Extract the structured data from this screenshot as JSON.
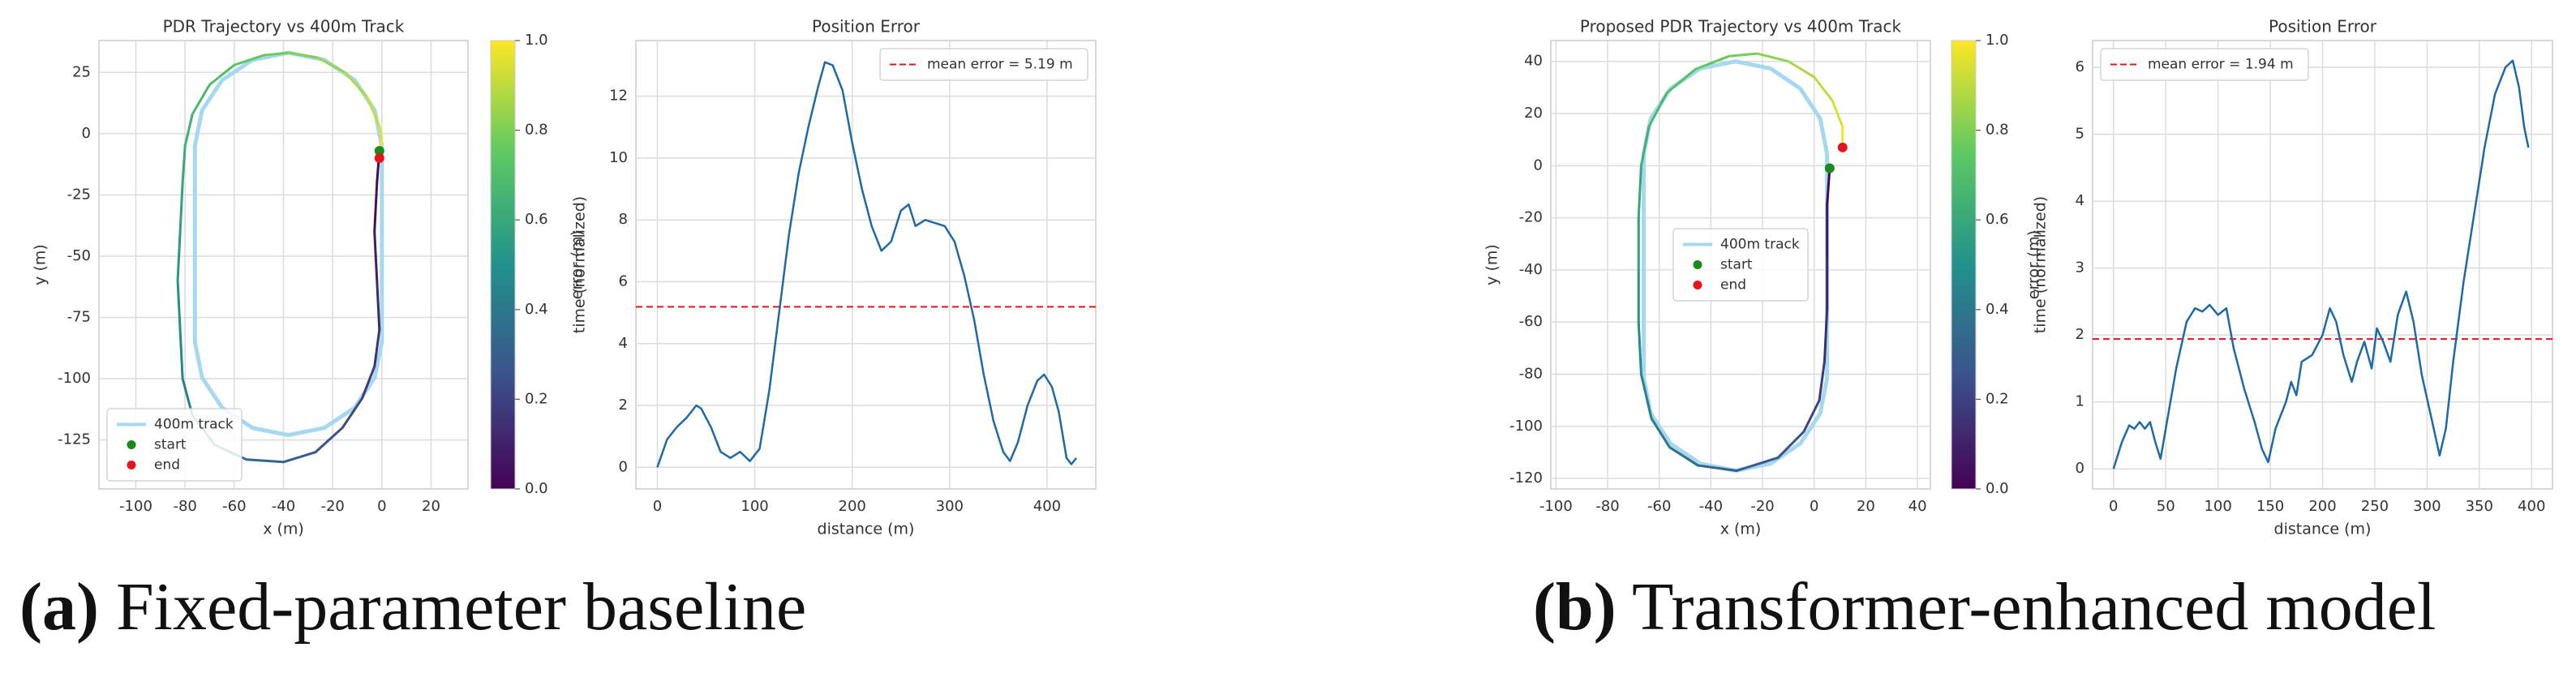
{
  "chart_data": [
    {
      "type": "line",
      "title": "PDR Trajectory vs 400m Track",
      "xlabel": "x (m)",
      "ylabel": "y (m)",
      "xlim": [
        -115,
        35
      ],
      "xticks": [
        -100,
        -80,
        -60,
        -40,
        -20,
        0,
        20
      ],
      "ylim": [
        -145,
        38
      ],
      "yticks": [
        -125,
        -100,
        -75,
        -50,
        -25,
        0,
        25
      ],
      "grid": true,
      "legend": "lower left",
      "series": [
        {
          "name": "400m track",
          "color": "#a6d8f0",
          "x": [
            0,
            0,
            -2.9,
            -11.1,
            -23.4,
            -38,
            -52.6,
            -64.9,
            -73.1,
            -76,
            -76,
            -73.1,
            -64.9,
            -52.6,
            -38,
            -23.4,
            -11.1,
            -2.9,
            0
          ],
          "values": [
            -5,
            -85,
            -99.5,
            -111.9,
            -120.1,
            -123,
            -120.1,
            -111.9,
            -99.5,
            -85,
            -5,
            9.5,
            21.9,
            30.1,
            33,
            30.1,
            21.9,
            9.5,
            -5
          ]
        },
        {
          "colormap": "viridis",
          "x": [
            -1,
            -2,
            -3,
            -2,
            -1,
            -3,
            -8,
            -16,
            -27,
            -40,
            -55,
            -68,
            -77,
            -81,
            -82,
            -83,
            -82,
            -81,
            -80,
            -77,
            -70,
            -60,
            -48,
            -38,
            -26,
            -15,
            -6,
            -1,
            0,
            -1
          ],
          "values": [
            -7,
            -20,
            -40,
            -60,
            -80,
            -95,
            -108,
            -120,
            -130,
            -134,
            -133,
            -127,
            -115,
            -100,
            -80,
            -60,
            -40,
            -20,
            -5,
            8,
            20,
            28,
            32,
            33,
            31,
            25,
            15,
            3,
            -2,
            -9
          ]
        },
        {
          "name": "start",
          "color": "#1a8a1a",
          "x": [
            -1
          ],
          "values": [
            -7
          ]
        },
        {
          "name": "end",
          "color": "#e8141c",
          "x": [
            -1
          ],
          "values": [
            -10
          ]
        }
      ],
      "colorbar": {
        "label": "time (normalized)",
        "lim": [
          0,
          1
        ],
        "ticks": [
          {
            "value": 0,
            "label": "0.0"
          },
          0.2,
          0.4,
          0.6,
          0.8,
          {
            "value": 1,
            "label": "1.0"
          }
        ]
      }
    },
    {
      "type": "line",
      "title": "Position Error",
      "xlabel": "distance (m)",
      "ylabel": "error (m)",
      "xlim": [
        -22,
        450
      ],
      "xticks": [
        0,
        100,
        200,
        300,
        400
      ],
      "ylim": [
        -0.7,
        13.8
      ],
      "yticks": [
        0,
        2,
        4,
        6,
        8,
        10,
        12
      ],
      "grid": true,
      "legend": "upper right",
      "series": [
        {
          "color": "#1f6aa5",
          "x": [
            0,
            10,
            20,
            30,
            40,
            45,
            55,
            65,
            75,
            85,
            95,
            105,
            115,
            125,
            135,
            145,
            155,
            165,
            172,
            180,
            190,
            200,
            210,
            220,
            230,
            240,
            250,
            258,
            265,
            275,
            285,
            295,
            305,
            315,
            325,
            335,
            345,
            355,
            362,
            370,
            380,
            390,
            397,
            405,
            412,
            420,
            425,
            430
          ],
          "values": [
            0,
            0.9,
            1.3,
            1.6,
            2.0,
            1.9,
            1.3,
            0.5,
            0.3,
            0.5,
            0.2,
            0.6,
            2.5,
            5.0,
            7.5,
            9.5,
            11,
            12.3,
            13.1,
            13.0,
            12.2,
            10.5,
            9.0,
            7.8,
            7.0,
            7.3,
            8.3,
            8.5,
            7.8,
            8.0,
            7.9,
            7.8,
            7.3,
            6.2,
            4.8,
            3.0,
            1.5,
            0.5,
            0.2,
            0.8,
            2.0,
            2.8,
            3.0,
            2.6,
            1.8,
            0.3,
            0.1,
            0.3
          ]
        }
      ],
      "hlines": [
        {
          "value": 5.19,
          "label": "mean error = 5.19 m",
          "color": "#e8141c"
        }
      ]
    },
    {
      "type": "line",
      "title": "Proposed PDR Trajectory vs 400m Track",
      "xlabel": "x (m)",
      "ylabel": "y (m)",
      "xlim": [
        -102,
        45
      ],
      "xticks": [
        -100,
        -80,
        -60,
        -40,
        -20,
        0,
        20,
        40
      ],
      "ylim": [
        -124,
        48
      ],
      "yticks": [
        -120,
        -100,
        -80,
        -60,
        -40,
        -20,
        0,
        20,
        40
      ],
      "grid": true,
      "legend": "center",
      "series": [
        {
          "name": "400m track",
          "color": "#a6d8f0",
          "x": [
            5,
            5,
            2.3,
            -5.4,
            -16.9,
            -30.5,
            -44.1,
            -55.6,
            -63.3,
            -66,
            -66,
            -63.3,
            -55.6,
            -44.1,
            -30.5,
            -16.9,
            -5.4,
            2.3,
            5
          ],
          "values": [
            4.5,
            -81.5,
            -95.1,
            -106.6,
            -114.3,
            -117,
            -114.3,
            -106.6,
            -95.1,
            -81.5,
            4.5,
            18.1,
            29.6,
            37.3,
            40,
            37.3,
            29.6,
            18.1,
            4.5
          ]
        },
        {
          "colormap": "viridis",
          "x": [
            6,
            5,
            5,
            5,
            4,
            2,
            -4,
            -14,
            -30,
            -45,
            -56,
            -63,
            -67,
            -68,
            -68,
            -68,
            -67,
            -64,
            -57,
            -46,
            -33,
            -22,
            -10,
            0,
            7,
            11,
            11
          ],
          "values": [
            -1,
            -15,
            -35,
            -55,
            -75,
            -90,
            -102,
            -112,
            -117,
            -115,
            -108,
            -97,
            -80,
            -60,
            -40,
            -20,
            0,
            15,
            28,
            37,
            42,
            43,
            40,
            34,
            25,
            15,
            7
          ]
        },
        {
          "name": "start",
          "color": "#1a8a1a",
          "x": [
            6
          ],
          "values": [
            -1
          ]
        },
        {
          "name": "end",
          "color": "#e8141c",
          "x": [
            11
          ],
          "values": [
            7
          ]
        }
      ],
      "colorbar": {
        "label": "time (normalized)",
        "lim": [
          0,
          1
        ],
        "ticks": [
          {
            "value": 0,
            "label": "0.0"
          },
          0.2,
          0.4,
          0.6,
          0.8,
          {
            "value": 1,
            "label": "1.0"
          }
        ]
      }
    },
    {
      "type": "line",
      "title": "Position Error",
      "xlabel": "distance (m)",
      "ylabel": "error (m)",
      "xlim": [
        -20,
        420
      ],
      "xticks": [
        0,
        50,
        100,
        150,
        200,
        250,
        300,
        350,
        400
      ],
      "ylim": [
        -0.3,
        6.4
      ],
      "yticks": [
        0,
        1,
        2,
        3,
        4,
        5,
        6
      ],
      "grid": true,
      "legend": "upper left",
      "series": [
        {
          "color": "#1f6aa5",
          "x": [
            0,
            8,
            15,
            20,
            25,
            30,
            35,
            40,
            45,
            50,
            60,
            70,
            78,
            85,
            92,
            100,
            108,
            115,
            125,
            135,
            142,
            148,
            155,
            165,
            170,
            175,
            180,
            190,
            200,
            207,
            213,
            220,
            228,
            233,
            240,
            247,
            252,
            258,
            265,
            272,
            280,
            287,
            295,
            305,
            312,
            318,
            325,
            335,
            345,
            355,
            365,
            375,
            382,
            388,
            393,
            397
          ],
          "values": [
            0,
            0.4,
            0.65,
            0.6,
            0.7,
            0.6,
            0.7,
            0.4,
            0.15,
            0.6,
            1.5,
            2.2,
            2.4,
            2.35,
            2.45,
            2.3,
            2.4,
            1.8,
            1.2,
            0.7,
            0.3,
            0.1,
            0.6,
            1.0,
            1.3,
            1.1,
            1.6,
            1.7,
            2.0,
            2.4,
            2.2,
            1.7,
            1.3,
            1.6,
            1.9,
            1.5,
            2.1,
            1.9,
            1.6,
            2.3,
            2.65,
            2.2,
            1.4,
            0.7,
            0.2,
            0.6,
            1.6,
            2.8,
            3.8,
            4.8,
            5.6,
            6.0,
            6.1,
            5.7,
            5.1,
            4.8
          ]
        }
      ],
      "hlines": [
        {
          "value": 1.94,
          "label": "mean error = 1.94 m",
          "color": "#e8141c"
        }
      ]
    }
  ],
  "captions": [
    {
      "label": "(a)",
      "text": "Fixed-parameter baseline"
    },
    {
      "label": "(b)",
      "text": "Transformer-enhanced model"
    }
  ]
}
